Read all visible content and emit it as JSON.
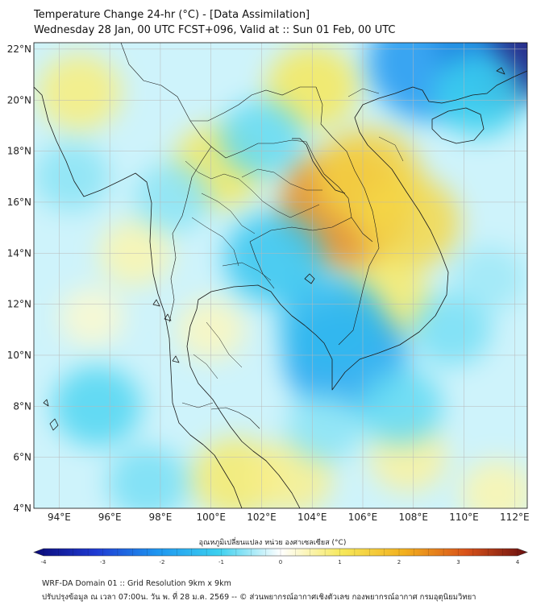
{
  "header": {
    "title_line1": "Temperature Change 24-hr (°C) - [Data Assimilation]",
    "title_line2": "Wednesday 28 Jan, 00 UTC FCST+096, Valid at :: Sun 01 Feb, 00 UTC"
  },
  "map": {
    "lat_labels": [
      "22°N",
      "20°N",
      "18°N",
      "16°N",
      "14°N",
      "12°N",
      "10°N",
      "8°N",
      "6°N",
      "4°N"
    ],
    "lat_values": [
      22,
      20,
      18,
      16,
      14,
      12,
      10,
      8,
      6,
      4
    ],
    "lon_labels": [
      "94°E",
      "96°E",
      "98°E",
      "100°E",
      "102°E",
      "104°E",
      "106°E",
      "108°E",
      "110°E",
      "112°E"
    ],
    "lon_values": [
      94,
      96,
      98,
      100,
      102,
      104,
      106,
      108,
      110,
      112
    ],
    "lat_range": [
      4,
      22.25
    ],
    "lon_range": [
      93,
      112.5
    ],
    "anomalies": [
      {
        "lon": 105.3,
        "lat": 15.8,
        "value": 2.4
      },
      {
        "lon": 106.2,
        "lat": 17.0,
        "value": 1.4
      },
      {
        "lon": 107.8,
        "lat": 15.2,
        "value": 1.3
      },
      {
        "lon": 104.0,
        "lat": 20.5,
        "value": 1.0
      },
      {
        "lon": 100.3,
        "lat": 17.4,
        "value": 1.0
      },
      {
        "lon": 94.8,
        "lat": 20.3,
        "value": 0.8
      },
      {
        "lon": 106.9,
        "lat": 12.2,
        "value": 0.9
      },
      {
        "lon": 97.0,
        "lat": 14.0,
        "value": 0.5
      },
      {
        "lon": 101.0,
        "lat": 5.2,
        "value": 0.9
      },
      {
        "lon": 103.2,
        "lat": 5.2,
        "value": 0.7
      },
      {
        "lon": 107.8,
        "lat": 6.0,
        "value": 0.6
      },
      {
        "lon": 111.3,
        "lat": 4.6,
        "value": 0.5
      },
      {
        "lon": 111.5,
        "lat": 22.1,
        "value": -4.0
      },
      {
        "lon": 108.8,
        "lat": 21.5,
        "value": -2.0
      },
      {
        "lon": 110.6,
        "lat": 20.2,
        "value": -1.0
      },
      {
        "lon": 105.3,
        "lat": 9.9,
        "value": -1.8
      },
      {
        "lon": 104.8,
        "lat": 11.2,
        "value": -1.4
      },
      {
        "lon": 102.5,
        "lat": 13.8,
        "value": -1.2
      },
      {
        "lon": 102.0,
        "lat": 18.5,
        "value": -0.8
      },
      {
        "lon": 98.5,
        "lat": 16.2,
        "value": -0.6
      },
      {
        "lon": 95.5,
        "lat": 8.0,
        "value": -0.9
      },
      {
        "lon": 94.5,
        "lat": 17.0,
        "value": -0.6
      },
      {
        "lon": 109.5,
        "lat": 11.0,
        "value": -0.7
      },
      {
        "lon": 97.5,
        "lat": 5.0,
        "value": -0.7
      },
      {
        "lon": 107.5,
        "lat": 8.0,
        "value": -0.8
      },
      {
        "lon": 104.5,
        "lat": 7.2,
        "value": -0.6
      },
      {
        "lon": 111.0,
        "lat": 13.0,
        "value": -0.5
      },
      {
        "lon": 100.0,
        "lat": 11.0,
        "value": 0.4
      },
      {
        "lon": 95.3,
        "lat": 11.5,
        "value": 0.3
      }
    ]
  },
  "colorbar": {
    "label": "อุณหภูมิเปลี่ยนแปลง หน่วย องศาเซลเซียส (°C)",
    "ticks": [
      "-4",
      "-3",
      "-2",
      "-1",
      "0",
      "1",
      "2",
      "3",
      "4"
    ],
    "tick_values": [
      -4,
      -3,
      -2,
      -1,
      0,
      1,
      2,
      3,
      4
    ],
    "range": [
      -4,
      4
    ],
    "colors": {
      "neg4": "#0a0a78",
      "neg3": "#1f3ad2",
      "neg2": "#1e96f0",
      "neg1": "#3cd0ef",
      "zero": "#ffffff",
      "pos1": "#f6e85a",
      "pos2": "#f2b01e",
      "pos3": "#d9531a",
      "pos4": "#6a0f0f"
    }
  },
  "footer": {
    "line1": "WRF-DA Domain 01 :: Grid Resolution 9km x 9km",
    "line2": "ปรับปรุงข้อมูล ณ เวลา 07:00น. วัน พ. ที่ 28 ม.ค. 2569 -- © ส่วนพยากรณ์อากาศเชิงตัวเลข กองพยากรณ์อากาศ กรมอุตุนิยมวิทยา"
  }
}
